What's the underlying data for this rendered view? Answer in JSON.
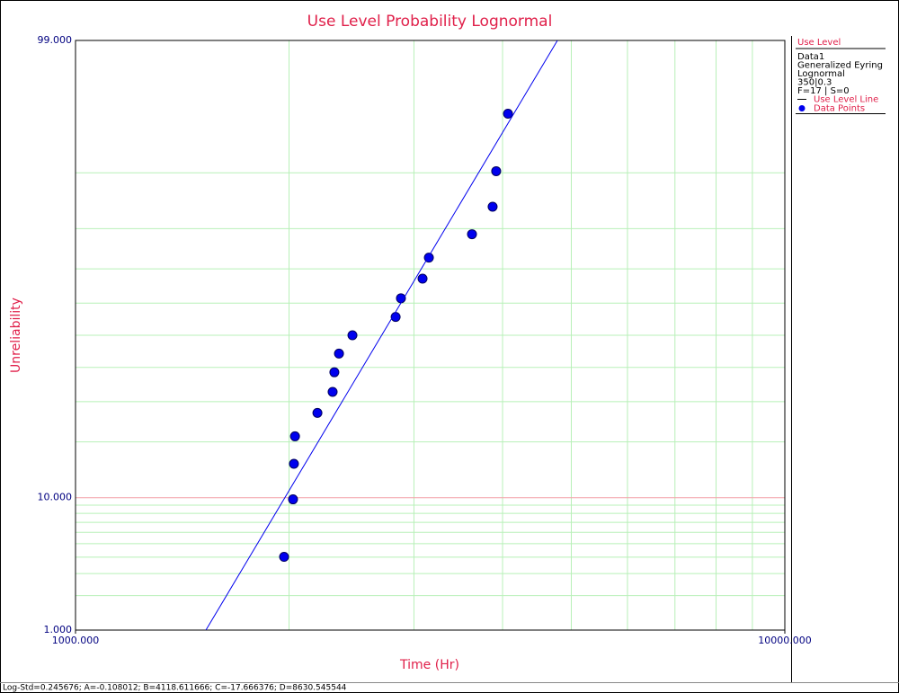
{
  "chart_data": {
    "type": "probability",
    "title": "Use Level Probability Lognormal",
    "x_label": "Time (Hr)",
    "y_label": "Unreliability",
    "x_scale": "log",
    "y_scale": "lognormal-probability",
    "xlim": [
      1000,
      10000
    ],
    "ylim": [
      1,
      99
    ],
    "xticks": [
      {
        "value": 1000,
        "label": "1000.000"
      },
      {
        "value": 10000,
        "label": "10000.000"
      }
    ],
    "yticks": [
      {
        "value": 1,
        "label": "1.000"
      },
      {
        "value": 10,
        "label": "10.000"
      },
      {
        "value": 99,
        "label": "99.000"
      }
    ],
    "x_minor_grid": [
      2000,
      3000,
      4000,
      5000,
      6000,
      7000,
      8000,
      9000
    ],
    "y_minor_grid": [
      2,
      3,
      4,
      5,
      6,
      7,
      8,
      9,
      20,
      30,
      40,
      50,
      60,
      70,
      80,
      90
    ],
    "grid_color": "#b8f0b8",
    "tick_grid_color": "#f4a0a8",
    "series": [
      {
        "name": "Data Points",
        "type": "scatter",
        "color": "#0000ee",
        "x": [
          1968,
          2026,
          2032,
          2039,
          2193,
          2304,
          2317,
          2352,
          2457,
          2827,
          2876,
          3085,
          3149,
          3622,
          3873,
          3918,
          4071
        ],
        "values": [
          4.02,
          9.77,
          15.52,
          21.26,
          27.01,
          32.76,
          38.51,
          44.25,
          50.0,
          55.75,
          61.49,
          67.24,
          72.99,
          78.74,
          84.48,
          90.23,
          95.98
        ]
      },
      {
        "name": "Use Level Line",
        "type": "line",
        "color": "#0000ee",
        "x": [
          1527,
          4780
        ],
        "values": [
          1,
          99
        ]
      }
    ],
    "legend": {
      "title": "Use Level",
      "lines": [
        "Data1",
        "Generalized Eyring",
        "Lognormal",
        "350|0.3",
        "F=17 | S=0"
      ]
    },
    "footer": "Log-Std=0.245676; A=-0.108012; B=4118.611666; C=-17.666376; D=8630.545544"
  }
}
